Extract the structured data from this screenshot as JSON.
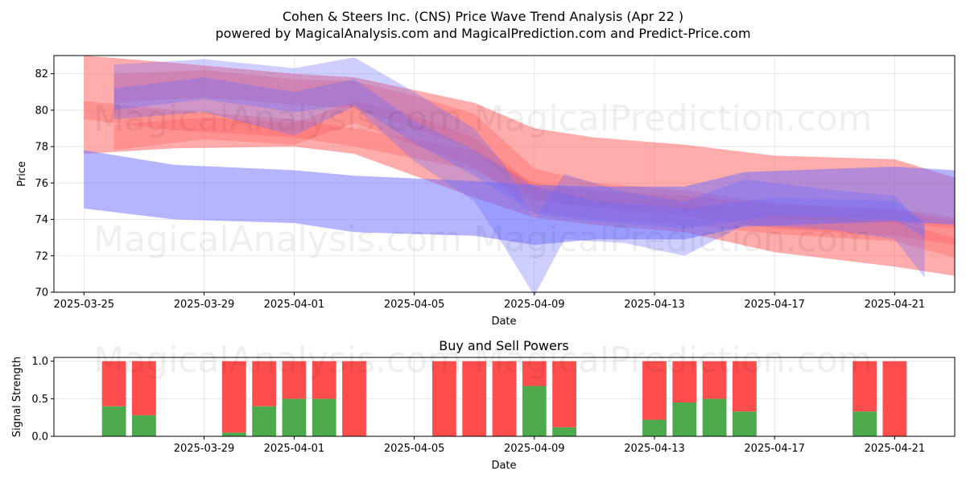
{
  "watermarks": [
    "MagicalAnalysis.com",
    "MagicalPrediction.com"
  ],
  "colors": {
    "buy": "#4caa4c",
    "sell": "#ff4d4d",
    "band_red": "#ff5a5a",
    "band_blue": "#6a6aff"
  },
  "chart_data": [
    {
      "type": "area",
      "title": "Cohen & Steers Inc. (CNS) Price Wave Trend Analysis (Apr 22 )",
      "subtitle": "powered by MagicalAnalysis.com and MagicalPrediction.com and Predict-Price.com",
      "xlabel": "Date",
      "ylabel": "Price",
      "xlim": [
        "2025-03-24",
        "2025-04-23"
      ],
      "ylim": [
        70,
        83
      ],
      "x_ticks": [
        "2025-03-25",
        "2025-03-29",
        "2025-04-01",
        "2025-04-05",
        "2025-04-09",
        "2025-04-13",
        "2025-04-17",
        "2025-04-21"
      ],
      "y_ticks": [
        70,
        72,
        74,
        76,
        78,
        80,
        82
      ],
      "grid": true,
      "series": [
        {
          "color": "red",
          "x": [
            "2025-03-25",
            "2025-03-28",
            "2025-04-01",
            "2025-04-03",
            "2025-04-07",
            "2025-04-09",
            "2025-04-11",
            "2025-04-14",
            "2025-04-17",
            "2025-04-21",
            "2025-04-23"
          ],
          "upper": [
            83.0,
            82.6,
            82.0,
            81.8,
            80.4,
            79.0,
            78.5,
            78.1,
            77.5,
            77.3,
            76.3
          ],
          "lower": [
            77.6,
            77.9,
            78.0,
            77.6,
            75.2,
            74.1,
            73.7,
            73.3,
            72.2,
            71.4,
            70.9
          ]
        },
        {
          "color": "red",
          "x": [
            "2025-03-25",
            "2025-03-28",
            "2025-04-01",
            "2025-04-03",
            "2025-04-07",
            "2025-04-09",
            "2025-04-11",
            "2025-04-14",
            "2025-04-17",
            "2025-04-21",
            "2025-04-23"
          ],
          "upper": [
            80.5,
            80.0,
            79.5,
            79.0,
            77.8,
            76.0,
            75.6,
            75.3,
            74.8,
            74.6,
            74.1
          ],
          "lower": [
            79.5,
            78.9,
            78.5,
            78.0,
            76.7,
            75.0,
            74.7,
            74.4,
            74.0,
            73.8,
            73.5
          ]
        },
        {
          "color": "red",
          "x": [
            "2025-03-26",
            "2025-03-29",
            "2025-04-01",
            "2025-04-03",
            "2025-04-05",
            "2025-04-07",
            "2025-04-09",
            "2025-04-11",
            "2025-04-14",
            "2025-04-17",
            "2025-04-21",
            "2025-04-23"
          ],
          "upper": [
            82.0,
            82.2,
            81.7,
            81.6,
            80.8,
            79.8,
            76.8,
            76.0,
            75.6,
            74.9,
            74.5,
            73.9
          ],
          "lower": [
            80.4,
            80.7,
            80.3,
            80.1,
            79.0,
            77.8,
            75.2,
            74.6,
            74.2,
            73.5,
            73.1,
            72.6
          ]
        },
        {
          "color": "red",
          "x": [
            "2025-03-26",
            "2025-03-29",
            "2025-04-01",
            "2025-04-03",
            "2025-04-05",
            "2025-04-07",
            "2025-04-09",
            "2025-04-11",
            "2025-04-14",
            "2025-04-17",
            "2025-04-21",
            "2025-04-23"
          ],
          "upper": [
            79.2,
            79.6,
            79.3,
            80.5,
            79.7,
            78.5,
            75.8,
            75.2,
            74.9,
            74.3,
            73.9,
            73.0
          ],
          "lower": [
            77.8,
            78.4,
            78.1,
            79.3,
            78.1,
            76.9,
            74.4,
            74.0,
            73.7,
            73.2,
            72.8,
            71.9
          ]
        },
        {
          "color": "blue",
          "x": [
            "2025-03-25",
            "2025-03-28",
            "2025-04-01",
            "2025-04-03",
            "2025-04-07",
            "2025-04-09",
            "2025-04-11",
            "2025-04-14",
            "2025-04-16",
            "2025-04-21",
            "2025-04-23"
          ],
          "upper": [
            77.8,
            77.0,
            76.7,
            76.4,
            76.1,
            75.9,
            75.8,
            75.8,
            76.6,
            76.9,
            76.7
          ],
          "lower": [
            74.6,
            74.0,
            73.8,
            73.3,
            73.1,
            72.6,
            72.9,
            72.9,
            73.6,
            73.9,
            73.7
          ]
        },
        {
          "color": "blue",
          "x": [
            "2025-03-26",
            "2025-03-29",
            "2025-04-01",
            "2025-04-03",
            "2025-04-05",
            "2025-04-07",
            "2025-04-08",
            "2025-04-09",
            "2025-04-10",
            "2025-04-12",
            "2025-04-14",
            "2025-04-16",
            "2025-04-19",
            "2025-04-21",
            "2025-04-22"
          ],
          "upper": [
            82.5,
            82.8,
            82.3,
            82.9,
            81.0,
            79.0,
            77.0,
            74.0,
            76.5,
            75.5,
            75.0,
            76.2,
            75.6,
            75.3,
            73.6
          ],
          "lower": [
            79.5,
            79.9,
            78.6,
            80.2,
            77.2,
            75.0,
            72.5,
            69.8,
            72.9,
            72.7,
            72.0,
            73.7,
            73.4,
            72.9,
            70.8
          ]
        },
        {
          "color": "blue",
          "x": [
            "2025-03-26",
            "2025-03-29",
            "2025-04-01",
            "2025-04-03",
            "2025-04-05",
            "2025-04-07",
            "2025-04-09",
            "2025-04-11",
            "2025-04-14",
            "2025-04-17",
            "2025-04-21",
            "2025-04-22"
          ],
          "upper": [
            81.2,
            81.8,
            81.0,
            81.7,
            79.4,
            77.8,
            75.8,
            75.0,
            74.6,
            75.2,
            75.0,
            73.9
          ],
          "lower": [
            80.0,
            80.6,
            79.9,
            80.3,
            78.2,
            76.4,
            74.3,
            73.9,
            73.5,
            74.2,
            74.0,
            73.0
          ]
        }
      ]
    },
    {
      "type": "bar",
      "title": "Buy and Sell Powers",
      "xlabel": "Date",
      "ylabel": "Signal Strength",
      "xlim": [
        "2025-03-24",
        "2025-04-23"
      ],
      "ylim": [
        0,
        1.05
      ],
      "x_ticks": [
        "2025-03-29",
        "2025-04-01",
        "2025-04-05",
        "2025-04-09",
        "2025-04-13",
        "2025-04-17",
        "2025-04-21"
      ],
      "y_ticks": [
        0.0,
        0.5,
        1.0
      ],
      "y_tick_labels": [
        "0.0",
        "0.5",
        "1.0"
      ],
      "grid": true,
      "series": [
        {
          "name": "Buy",
          "color": "green"
        },
        {
          "name": "Sell",
          "color": "red"
        }
      ],
      "bars": [
        {
          "date": "2025-03-26",
          "buy": 0.4,
          "sell": 0.6
        },
        {
          "date": "2025-03-27",
          "buy": 0.28,
          "sell": 0.72
        },
        {
          "date": "2025-03-30",
          "buy": 0.05,
          "sell": 0.95
        },
        {
          "date": "2025-03-31",
          "buy": 0.4,
          "sell": 0.6
        },
        {
          "date": "2025-04-01",
          "buy": 0.5,
          "sell": 0.5
        },
        {
          "date": "2025-04-02",
          "buy": 0.5,
          "sell": 0.5
        },
        {
          "date": "2025-04-03",
          "buy": 0.0,
          "sell": 1.0
        },
        {
          "date": "2025-04-06",
          "buy": 0.0,
          "sell": 1.0
        },
        {
          "date": "2025-04-07",
          "buy": 0.0,
          "sell": 1.0
        },
        {
          "date": "2025-04-08",
          "buy": 0.0,
          "sell": 1.0
        },
        {
          "date": "2025-04-09",
          "buy": 0.67,
          "sell": 0.33
        },
        {
          "date": "2025-04-10",
          "buy": 0.12,
          "sell": 0.88
        },
        {
          "date": "2025-04-13",
          "buy": 0.22,
          "sell": 0.78
        },
        {
          "date": "2025-04-14",
          "buy": 0.45,
          "sell": 0.55
        },
        {
          "date": "2025-04-15",
          "buy": 0.5,
          "sell": 0.5
        },
        {
          "date": "2025-04-16",
          "buy": 0.33,
          "sell": 0.67
        },
        {
          "date": "2025-04-20",
          "buy": 0.33,
          "sell": 0.67
        },
        {
          "date": "2025-04-21",
          "buy": 0.0,
          "sell": 1.0
        }
      ]
    }
  ]
}
